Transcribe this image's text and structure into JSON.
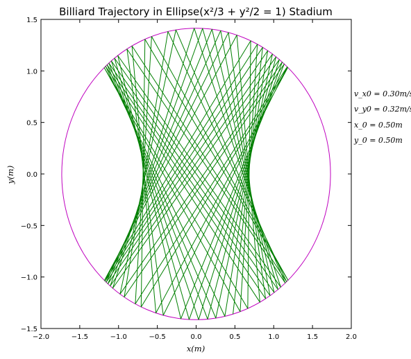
{
  "chart_data": {
    "type": "line",
    "title": "Billiard Trajectory in Ellipse(x²/3 + y²/2 = 1) Stadium",
    "xlabel": "x(m)",
    "ylabel": "y(m)",
    "xlim": [
      -2.0,
      2.0
    ],
    "ylim": [
      -1.5,
      1.5
    ],
    "xticks": [
      -2.0,
      -1.5,
      -1.0,
      -0.5,
      0.0,
      0.5,
      1.0,
      1.5,
      2.0
    ],
    "yticks": [
      -1.5,
      -1.0,
      -0.5,
      0.0,
      0.5,
      1.0,
      1.5
    ],
    "xtick_labels": [
      "−2.0",
      "−1.5",
      "−1.0",
      "−0.5",
      "0.0",
      "0.5",
      "1.0",
      "1.5",
      "2.0"
    ],
    "ytick_labels": [
      "−1.5",
      "−1.0",
      "−0.5",
      "0.0",
      "0.5",
      "1.0",
      "1.5"
    ],
    "grid": false,
    "boundary": {
      "equation": "x^2/3 + y^2/2 = 1",
      "semi_axis_x": 1.7321,
      "semi_axis_y": 1.4142,
      "color": "#bf00bf"
    },
    "trajectory": {
      "color": "#007f00",
      "start": [
        0.5,
        0.5
      ],
      "velocity": [
        0.3,
        0.32
      ],
      "bounces": 60
    },
    "annotations": [
      {
        "name": "vx0",
        "text": "v_x0 = 0.30m/s"
      },
      {
        "name": "vy0",
        "text": "v_y0 = 0.32m/s"
      },
      {
        "name": "x0",
        "text": "x_0 = 0.50m"
      },
      {
        "name": "y0",
        "text": "y_0 = 0.50m"
      }
    ]
  }
}
